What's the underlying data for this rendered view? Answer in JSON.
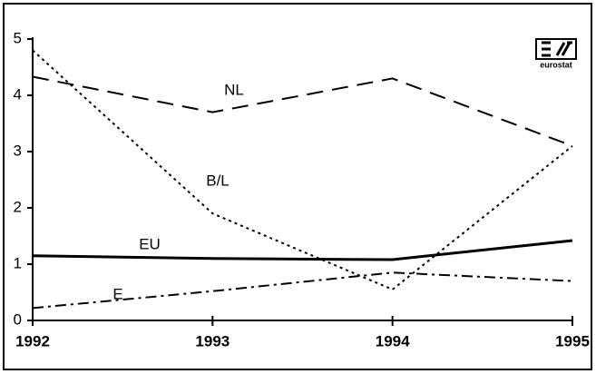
{
  "chart_data": {
    "type": "line",
    "x": [
      1992,
      1993,
      1994,
      1995
    ],
    "xlim": [
      1992,
      1995
    ],
    "xticks": [
      1992,
      1993,
      1994,
      1995
    ],
    "ylim": [
      0,
      5
    ],
    "yticks": [
      0,
      1,
      2,
      3,
      4,
      5
    ],
    "logo": "eurostat",
    "series": [
      {
        "name": "NL",
        "color": "#000000",
        "dash": "long-dash",
        "values": [
          4.33,
          3.7,
          4.3,
          3.1
        ]
      },
      {
        "name": "B/L",
        "color": "#000000",
        "dash": "dotted",
        "values": [
          4.8,
          1.9,
          0.55,
          3.1
        ]
      },
      {
        "name": "EU",
        "color": "#000000",
        "dash": "solid",
        "values": [
          1.15,
          1.1,
          1.08,
          1.42
        ]
      },
      {
        "name": "E",
        "color": "#000000",
        "dash": "dash-dot",
        "values": [
          0.22,
          0.52,
          0.85,
          0.7
        ]
      }
    ]
  }
}
